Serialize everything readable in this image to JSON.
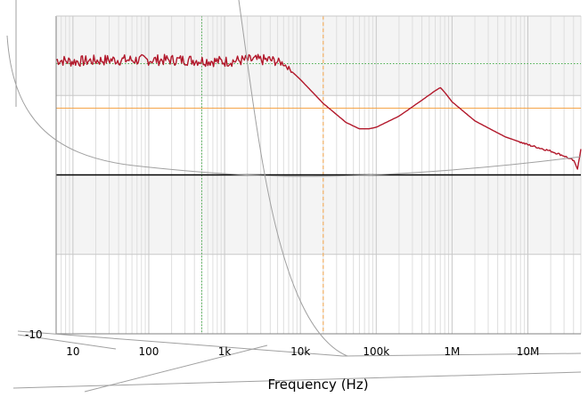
{
  "chart_data": {
    "type": "line",
    "title": "",
    "xlabel": "Frequency (Hz)",
    "ylabel": "",
    "x_scale": "log",
    "xlim": [
      6,
      50000000
    ],
    "ylim": [
      -1,
      1
    ],
    "grid": true,
    "x_tick_labels": [
      {
        "value": 10,
        "label": "10"
      },
      {
        "value": 100,
        "label": "100"
      },
      {
        "value": 1000,
        "label": "1k"
      },
      {
        "value": 10000,
        "label": "10k"
      },
      {
        "value": 100000,
        "label": "100k"
      },
      {
        "value": 1000000,
        "label": "1M"
      },
      {
        "value": 10000000,
        "label": "10M"
      }
    ],
    "y_tick_labels": [
      {
        "value": -1,
        "label": "-10"
      }
    ],
    "y_gridlines": [
      -0.5,
      0,
      0.5,
      1
    ],
    "shaded_bands": [
      [
        0.5,
        1
      ],
      [
        -0.5,
        0
      ]
    ],
    "reference_lines": [
      {
        "orientation": "horizontal",
        "value": 0.7,
        "color": "#4caf50",
        "style": "dotted"
      },
      {
        "orientation": "horizontal",
        "value": 0.42,
        "color": "#f5a54a",
        "style": "solid"
      },
      {
        "orientation": "vertical",
        "value": 500,
        "color": "#4caf50",
        "style": "dotted"
      },
      {
        "orientation": "vertical",
        "value": 20000,
        "color": "#f5a54a",
        "style": "dashed"
      }
    ],
    "zero_line": {
      "value": 0,
      "color": "#000000"
    },
    "series": [
      {
        "color": "#b2182b",
        "noisy_below_x": 8000,
        "x": [
          6,
          10,
          30,
          100,
          300,
          1000,
          2000,
          4000,
          6000,
          10000,
          20000,
          40000,
          60000,
          80000,
          100000,
          200000,
          400000,
          600000,
          700000,
          800000,
          1000000,
          2000000,
          5000000,
          10000000,
          20000000,
          30000000,
          40000000,
          45000000,
          50000000
        ],
        "y": [
          0.72,
          0.71,
          0.72,
          0.72,
          0.72,
          0.71,
          0.72,
          0.72,
          0.7,
          0.6,
          0.45,
          0.33,
          0.29,
          0.29,
          0.3,
          0.37,
          0.47,
          0.53,
          0.55,
          0.52,
          0.46,
          0.34,
          0.24,
          0.19,
          0.15,
          0.12,
          0.09,
          0.04,
          0.16
        ]
      }
    ]
  }
}
